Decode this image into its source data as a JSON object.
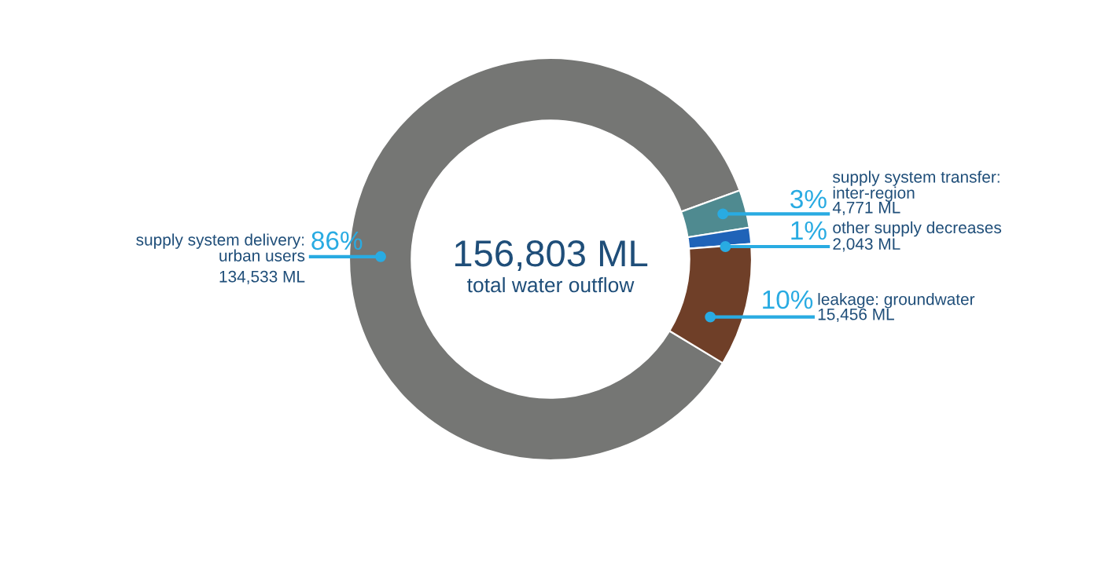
{
  "chart_data": {
    "type": "donut",
    "categories": [
      "supply system delivery:\nurban users",
      "supply system transfer:\ninter-region",
      "other supply decreases",
      "leakage: groundwater"
    ],
    "values": [
      134533,
      4771,
      2043,
      15456
    ],
    "colors": [
      "#757674",
      "#4f8a90",
      "#1f63b8",
      "#6f3f28"
    ],
    "value_labels": [
      "134,533 ML",
      "4,771 ML",
      "2,043 ML",
      "15,456 ML"
    ],
    "annotations": [
      "86%",
      "3%",
      "1%",
      "10%",
      "156,803 ML",
      "total water outflow"
    ]
  }
}
